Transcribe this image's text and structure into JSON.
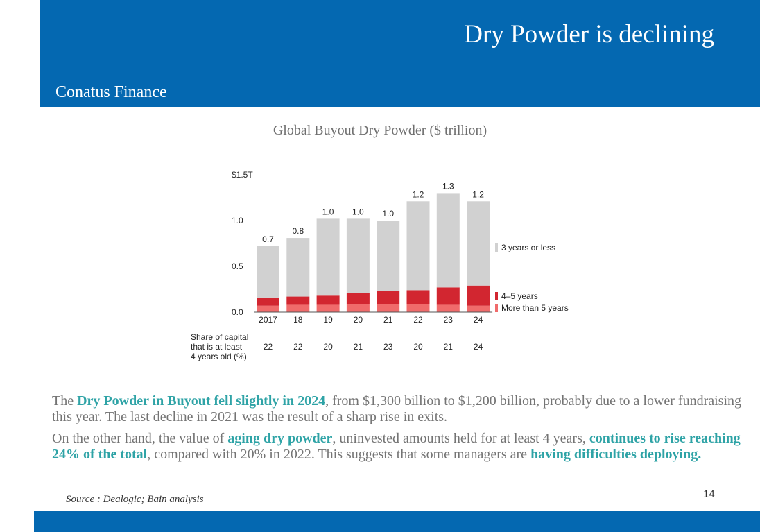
{
  "header": {
    "title": "Dry Powder is declining",
    "company": "Conatus Finance",
    "brand_color": "#0468b1"
  },
  "chart_title": "Global Buyout Dry Powder ($ trillion)",
  "chart_data": {
    "type": "bar",
    "stacked": true,
    "categories": [
      "2017",
      "18",
      "19",
      "20",
      "21",
      "22",
      "23",
      "24"
    ],
    "totals": [
      0.7,
      0.8,
      1.0,
      1.0,
      1.0,
      1.2,
      1.3,
      1.2
    ],
    "total_labels": [
      "0.7",
      "0.8",
      "1.0",
      "1.0",
      "1.0",
      "1.2",
      "1.3",
      "1.2"
    ],
    "series": [
      {
        "name": "More than 5 years",
        "color": "#f06b6b",
        "values": [
          0.07,
          0.08,
          0.08,
          0.09,
          0.09,
          0.09,
          0.08,
          0.07
        ]
      },
      {
        "name": "4–5 years",
        "color": "#d22630",
        "values": [
          0.09,
          0.09,
          0.1,
          0.12,
          0.14,
          0.15,
          0.19,
          0.22
        ]
      },
      {
        "name": "3 years or less",
        "color": "#d1d1d1",
        "values": [
          0.56,
          0.64,
          0.84,
          0.81,
          0.77,
          0.97,
          1.03,
          0.92
        ]
      }
    ],
    "y_ticks": [
      "$1.5T",
      "1.0",
      "0.5",
      "0.0"
    ],
    "ylim": [
      0,
      1.5
    ],
    "share_label": [
      "Share of capital",
      "that is at least",
      "4 years old (%)"
    ],
    "share_values": [
      "22",
      "22",
      "20",
      "21",
      "23",
      "20",
      "21",
      "24"
    ]
  },
  "body": {
    "p1": {
      "t1": "The ",
      "h1": "Dry Powder in Buyout fell slightly in 2024",
      "t2": ", from $1,300 billion to $1,200 billion, probably due to a lower fundraising this year. The last decline in 2021 was the result of a sharp rise in exits."
    },
    "p2": {
      "t1": "On the other hand, the value of ",
      "h1": "aging dry powder",
      "t2": ", uninvested amounts held for at least 4 years, ",
      "h2": "continues to rise reaching 24% of the total",
      "t3": ", compared with 20% in 2022. This suggests that some managers are ",
      "h3": "having difficulties deploying.",
      "highlight_color": "#2ea3a6"
    }
  },
  "footer": {
    "source": "Source : Dealogic; Bain analysis",
    "page_number": "14"
  }
}
